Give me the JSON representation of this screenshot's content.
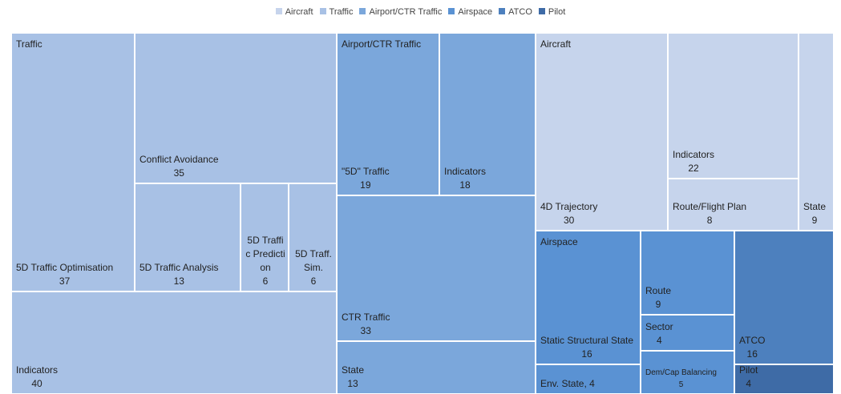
{
  "chart_data": {
    "type": "treemap",
    "series": [
      {
        "name": "Aircraft",
        "color": "#c6d4ec",
        "children": [
          {
            "name": "4D Trajectory",
            "value": 30
          },
          {
            "name": "Indicators",
            "value": 22
          },
          {
            "name": "Route/Flight Plan",
            "value": 8
          },
          {
            "name": "State",
            "value": 9
          }
        ]
      },
      {
        "name": "Traffic",
        "color": "#a8c1e5",
        "children": [
          {
            "name": "5D Traffic Optimisation",
            "value": 37
          },
          {
            "name": "Conflict Avoidance",
            "value": 35
          },
          {
            "name": "5D Traffic Analysis",
            "value": 13
          },
          {
            "name": "5D Traffic Prediction",
            "value": 6
          },
          {
            "name": "5D Traff. Sim.",
            "value": 6
          },
          {
            "name": "Indicators",
            "value": 40
          }
        ]
      },
      {
        "name": "Airport/CTR Traffic",
        "color": "#7ba7db",
        "children": [
          {
            "name": "\"5D\" Traffic",
            "value": 19
          },
          {
            "name": "Indicators",
            "value": 18
          },
          {
            "name": "CTR Traffic",
            "value": 33
          },
          {
            "name": "State",
            "value": 13
          }
        ]
      },
      {
        "name": "Airspace",
        "color": "#5a92d3",
        "children": [
          {
            "name": "Static Structural State",
            "value": 16
          },
          {
            "label": "Env. State, 4",
            "value": 4
          },
          {
            "name": "Route",
            "value": 9
          },
          {
            "name": "Sector",
            "value": 4
          },
          {
            "name": "Dem/Cap Balancing",
            "value": 5
          }
        ]
      },
      {
        "name": "ATCO",
        "color": "#4d80be",
        "children": [
          {
            "name": "ATCO",
            "value": 16
          }
        ]
      },
      {
        "name": "Pilot",
        "color": "#3e6ba6",
        "children": [
          {
            "name": "Pilot",
            "value": 4
          }
        ]
      }
    ]
  }
}
